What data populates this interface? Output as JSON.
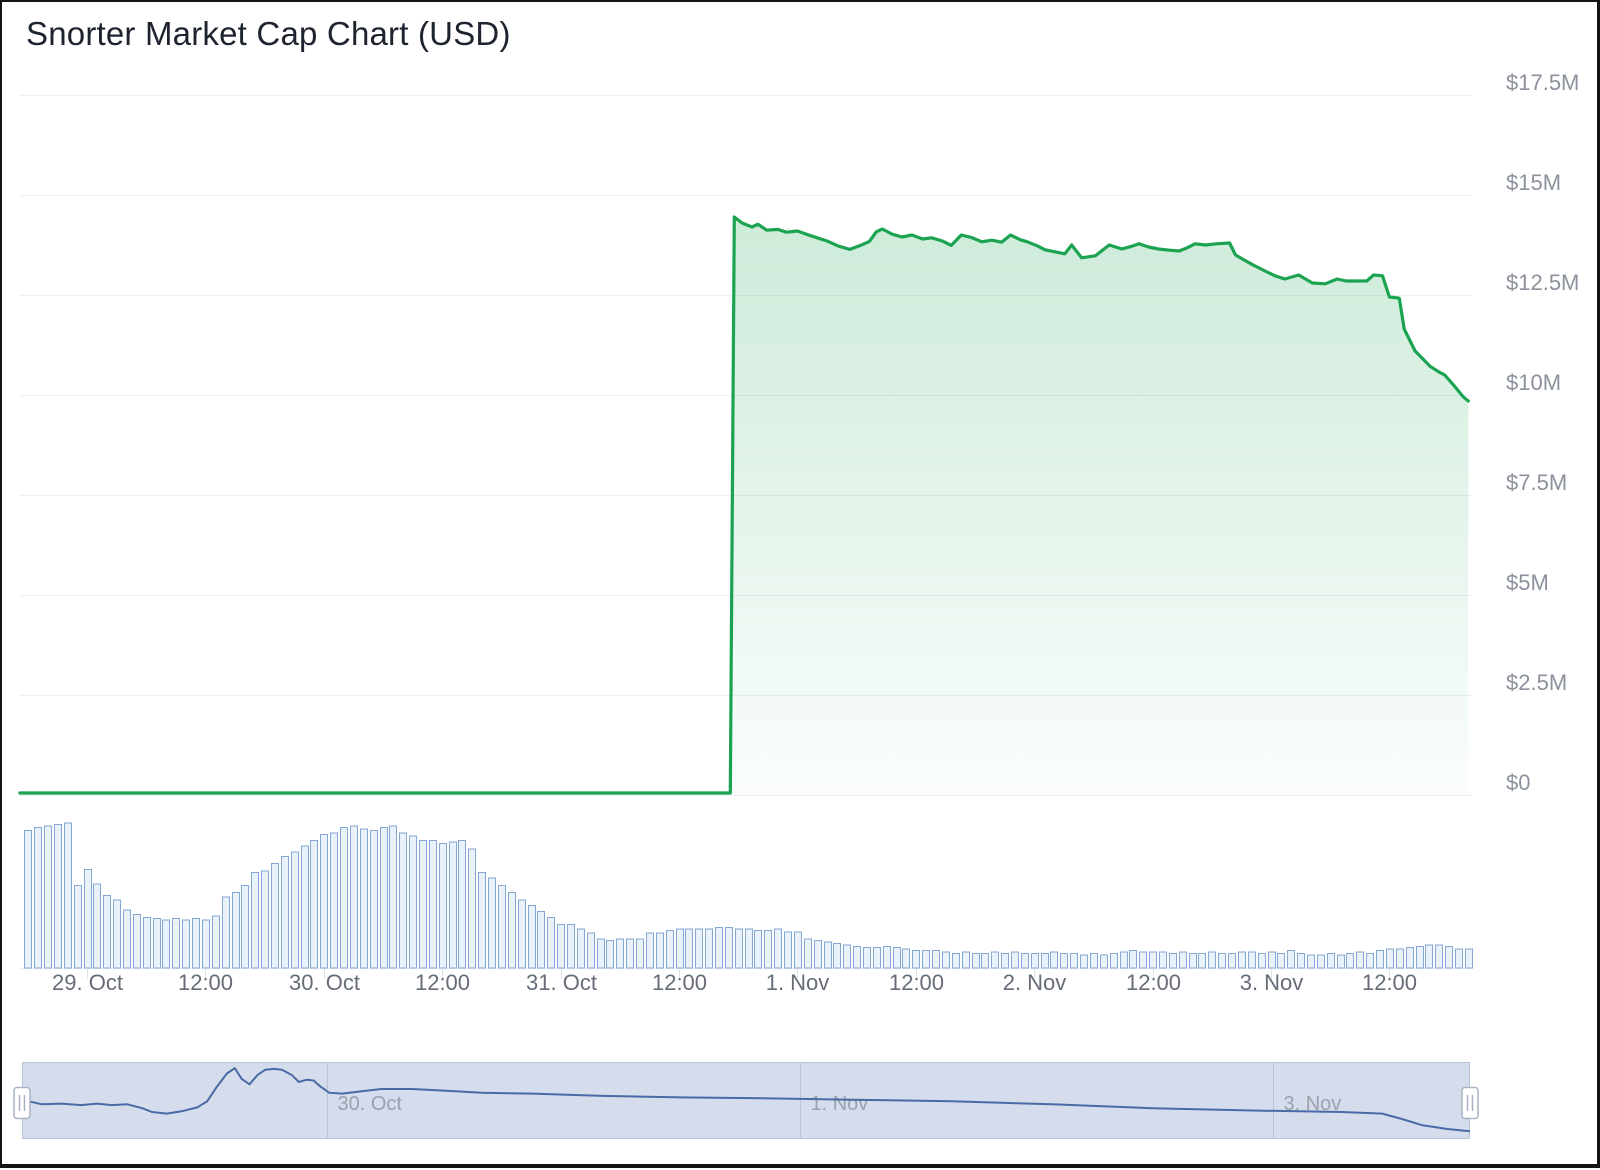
{
  "title": "Snorter Market Cap Chart (USD)",
  "colors": {
    "title_color": "#1e2330",
    "accent_green": "#1ba352",
    "area_fill_top": "rgba(27,163,82,0.26)",
    "area_fill_bottom": "rgba(27,163,82,0.02)",
    "grid": "#edeff2",
    "axis_tick": "#dfe3e7",
    "y_label": "#8b919d",
    "x_label": "#666c78",
    "volume_stroke": "#84a7d3",
    "volume_fill": "#e9f1fa",
    "navigator_mask": "rgba(88,120,180,0.25)",
    "navigator_outline": "#b7c2d6",
    "navigator_grid": "#bac3d4",
    "navigator_line": "#4a6aa5",
    "navigator_label": "#9aa1ad",
    "handle_fill": "#ffffff",
    "handle_border": "#a9b2c4"
  },
  "chart_data": {
    "type": "area",
    "title": "Snorter Market Cap Chart (USD)",
    "x_axis": {
      "unit": "hours from 29 Oct 00:00",
      "range": [
        -6.8,
        140
      ],
      "ticks": [
        {
          "t": 0,
          "label": "29. Oct"
        },
        {
          "t": 12,
          "label": "12:00"
        },
        {
          "t": 24,
          "label": "30. Oct"
        },
        {
          "t": 36,
          "label": "12:00"
        },
        {
          "t": 48,
          "label": "31. Oct"
        },
        {
          "t": 60,
          "label": "12:00"
        },
        {
          "t": 72,
          "label": "1. Nov"
        },
        {
          "t": 84,
          "label": "12:00"
        },
        {
          "t": 96,
          "label": "2. Nov"
        },
        {
          "t": 108,
          "label": "12:00"
        },
        {
          "t": 120,
          "label": "3. Nov"
        },
        {
          "t": 132,
          "label": "12:00"
        }
      ]
    },
    "y_axis": {
      "unit": "USD millions",
      "range": [
        0,
        17.5
      ],
      "grid": true,
      "labels_position": "right",
      "ticks": [
        {
          "v": 0,
          "label": "$0"
        },
        {
          "v": 2.5,
          "label": "$2.5M"
        },
        {
          "v": 5,
          "label": "$5M"
        },
        {
          "v": 7.5,
          "label": "$7.5M"
        },
        {
          "v": 10,
          "label": "$10M"
        },
        {
          "v": 12.5,
          "label": "$12.5M"
        },
        {
          "v": 15,
          "label": "$15M"
        },
        {
          "v": 17.5,
          "label": "$17.5M"
        }
      ]
    },
    "series": [
      {
        "name": "Market Cap (USD millions)",
        "type": "area",
        "color": "#1ba352",
        "points": [
          [
            -6.8,
            0.05
          ],
          [
            65.2,
            0.05
          ],
          [
            65.6,
            14.45
          ],
          [
            66.4,
            14.3
          ],
          [
            67.4,
            14.2
          ],
          [
            68.0,
            14.27
          ],
          [
            68.9,
            14.12
          ],
          [
            70.0,
            14.14
          ],
          [
            70.9,
            14.07
          ],
          [
            72.0,
            14.1
          ],
          [
            73.5,
            13.97
          ],
          [
            75.0,
            13.85
          ],
          [
            76.2,
            13.72
          ],
          [
            77.3,
            13.64
          ],
          [
            78.4,
            13.74
          ],
          [
            79.3,
            13.84
          ],
          [
            80.0,
            14.08
          ],
          [
            80.6,
            14.15
          ],
          [
            81.6,
            14.02
          ],
          [
            82.6,
            13.95
          ],
          [
            83.6,
            14.0
          ],
          [
            84.7,
            13.9
          ],
          [
            85.6,
            13.93
          ],
          [
            86.8,
            13.84
          ],
          [
            87.6,
            13.74
          ],
          [
            88.6,
            14.0
          ],
          [
            89.6,
            13.94
          ],
          [
            90.7,
            13.83
          ],
          [
            91.7,
            13.87
          ],
          [
            92.7,
            13.82
          ],
          [
            93.6,
            14.0
          ],
          [
            94.6,
            13.88
          ],
          [
            95.3,
            13.83
          ],
          [
            96.3,
            13.73
          ],
          [
            97.1,
            13.63
          ],
          [
            98.1,
            13.58
          ],
          [
            99.1,
            13.53
          ],
          [
            99.8,
            13.75
          ],
          [
            100.8,
            13.43
          ],
          [
            102.2,
            13.48
          ],
          [
            103.6,
            13.75
          ],
          [
            104.9,
            13.65
          ],
          [
            105.9,
            13.72
          ],
          [
            106.6,
            13.78
          ],
          [
            107.6,
            13.7
          ],
          [
            108.6,
            13.65
          ],
          [
            109.7,
            13.62
          ],
          [
            110.7,
            13.6
          ],
          [
            111.5,
            13.68
          ],
          [
            112.3,
            13.78
          ],
          [
            113.4,
            13.75
          ],
          [
            114.4,
            13.78
          ],
          [
            115.8,
            13.8
          ],
          [
            116.4,
            13.5
          ],
          [
            117.1,
            13.4
          ],
          [
            118.2,
            13.25
          ],
          [
            119.4,
            13.1
          ],
          [
            120.4,
            12.98
          ],
          [
            121.4,
            12.9
          ],
          [
            122.8,
            13.0
          ],
          [
            124.2,
            12.8
          ],
          [
            125.5,
            12.78
          ],
          [
            126.7,
            12.9
          ],
          [
            127.6,
            12.85
          ],
          [
            128.5,
            12.85
          ],
          [
            129.7,
            12.85
          ],
          [
            130.4,
            13.0
          ],
          [
            131.3,
            12.98
          ],
          [
            132.0,
            12.45
          ],
          [
            133.0,
            12.42
          ],
          [
            133.5,
            11.65
          ],
          [
            134.6,
            11.1
          ],
          [
            135.4,
            10.9
          ],
          [
            136.1,
            10.72
          ],
          [
            137.0,
            10.58
          ],
          [
            137.6,
            10.5
          ],
          [
            138.5,
            10.25
          ],
          [
            139.5,
            9.95
          ],
          [
            140.0,
            9.85
          ]
        ]
      },
      {
        "name": "Volume",
        "type": "column",
        "color": "#84a7d3",
        "start_t": -6,
        "step_hours": 1,
        "values_normalized": [
          0.95,
          0.97,
          0.98,
          0.99,
          1.0,
          0.57,
          0.68,
          0.58,
          0.5,
          0.47,
          0.4,
          0.37,
          0.35,
          0.34,
          0.33,
          0.34,
          0.33,
          0.34,
          0.33,
          0.36,
          0.49,
          0.52,
          0.57,
          0.66,
          0.67,
          0.72,
          0.77,
          0.8,
          0.84,
          0.88,
          0.92,
          0.93,
          0.97,
          0.98,
          0.96,
          0.95,
          0.97,
          0.98,
          0.93,
          0.91,
          0.88,
          0.88,
          0.86,
          0.87,
          0.88,
          0.82,
          0.66,
          0.62,
          0.57,
          0.52,
          0.47,
          0.43,
          0.39,
          0.35,
          0.3,
          0.3,
          0.27,
          0.24,
          0.2,
          0.19,
          0.2,
          0.2,
          0.2,
          0.24,
          0.24,
          0.26,
          0.27,
          0.27,
          0.27,
          0.27,
          0.28,
          0.28,
          0.27,
          0.27,
          0.26,
          0.26,
          0.27,
          0.25,
          0.25,
          0.2,
          0.19,
          0.18,
          0.17,
          0.16,
          0.15,
          0.14,
          0.14,
          0.15,
          0.14,
          0.13,
          0.12,
          0.12,
          0.12,
          0.11,
          0.1,
          0.11,
          0.1,
          0.1,
          0.11,
          0.1,
          0.11,
          0.1,
          0.1,
          0.1,
          0.11,
          0.1,
          0.1,
          0.09,
          0.1,
          0.09,
          0.1,
          0.11,
          0.12,
          0.11,
          0.11,
          0.11,
          0.1,
          0.11,
          0.1,
          0.1,
          0.11,
          0.1,
          0.1,
          0.11,
          0.11,
          0.1,
          0.11,
          0.1,
          0.12,
          0.1,
          0.09,
          0.09,
          0.1,
          0.09,
          0.1,
          0.11,
          0.1,
          0.12,
          0.13,
          0.13,
          0.14,
          0.15,
          0.16,
          0.16,
          0.15,
          0.13,
          0.13
        ]
      }
    ],
    "navigator": {
      "selected_range": "full",
      "labels": [
        {
          "t": 24,
          "label": "30. Oct"
        },
        {
          "t": 72,
          "label": "1. Nov"
        },
        {
          "t": 120,
          "label": "3. Nov"
        }
      ],
      "line_points": [
        [
          -7,
          0.51
        ],
        [
          -5,
          0.45
        ],
        [
          -3,
          0.46
        ],
        [
          -1,
          0.44
        ],
        [
          0.6,
          0.46
        ],
        [
          2.1,
          0.44
        ],
        [
          3.7,
          0.45
        ],
        [
          5.2,
          0.4
        ],
        [
          6.2,
          0.35
        ],
        [
          7.7,
          0.33
        ],
        [
          9.2,
          0.36
        ],
        [
          10.8,
          0.41
        ],
        [
          11.8,
          0.49
        ],
        [
          12.8,
          0.68
        ],
        [
          13.8,
          0.85
        ],
        [
          14.6,
          0.92
        ],
        [
          15.3,
          0.78
        ],
        [
          16.1,
          0.71
        ],
        [
          16.9,
          0.83
        ],
        [
          17.7,
          0.9
        ],
        [
          18.6,
          0.91
        ],
        [
          19.4,
          0.9
        ],
        [
          20.4,
          0.83
        ],
        [
          21.1,
          0.74
        ],
        [
          21.9,
          0.77
        ],
        [
          22.6,
          0.76
        ],
        [
          23.3,
          0.68
        ],
        [
          24.2,
          0.6
        ],
        [
          25.5,
          0.59
        ],
        [
          27.5,
          0.62
        ],
        [
          29.5,
          0.65
        ],
        [
          32.6,
          0.65
        ],
        [
          35.6,
          0.63
        ],
        [
          39.7,
          0.6
        ],
        [
          44.8,
          0.59
        ],
        [
          51.9,
          0.56
        ],
        [
          60,
          0.54
        ],
        [
          68.1,
          0.53
        ],
        [
          77.3,
          0.51
        ],
        [
          87.4,
          0.49
        ],
        [
          97.6,
          0.45
        ],
        [
          107.7,
          0.4
        ],
        [
          117.9,
          0.37
        ],
        [
          127,
          0.35
        ],
        [
          131.1,
          0.33
        ],
        [
          133.1,
          0.26
        ],
        [
          135.1,
          0.18
        ],
        [
          137.7,
          0.13
        ],
        [
          140,
          0.1
        ]
      ]
    }
  }
}
